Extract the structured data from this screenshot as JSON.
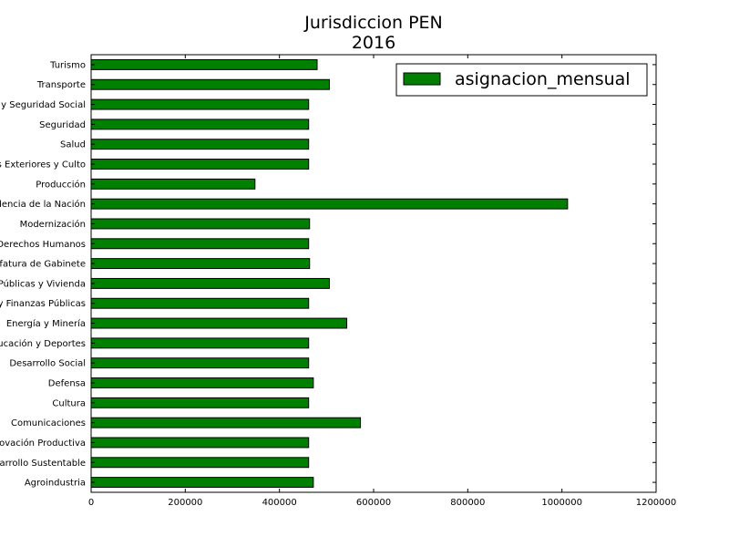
{
  "chart_data": {
    "type": "bar",
    "orientation": "horizontal",
    "title_lines": [
      "Jurisdiccion PEN",
      "2016"
    ],
    "xlabel": "",
    "ylabel": "",
    "xlim": [
      0,
      1200000
    ],
    "xticks": [
      0,
      200000,
      400000,
      600000,
      800000,
      1000000,
      1200000
    ],
    "xtick_labels": [
      "0",
      "200000",
      "400000",
      "600000",
      "800000",
      "1000000",
      "1200000"
    ],
    "grid": false,
    "legend_position": "top-right",
    "bar_color": "#008000",
    "categories": [
      "Agroindustria",
      "Ambiente y Desarrollo Sustentable",
      "Ciencia, Tecnología e Innovación Productiva",
      "Comunicaciones",
      "Cultura",
      "Defensa",
      "Desarrollo Social",
      "Educación y Deportes",
      "Energía y Minería",
      "Hacienda y Finanzas Públicas",
      "Interior, Obras Públicas y Vivienda",
      "Jefatura de Gabinete",
      "Justicia y Derechos Humanos",
      "Modernización",
      "Presidencia de la Nación",
      "Producción",
      "Relaciones Exteriores y Culto",
      "Salud",
      "Seguridad",
      "Trabajo, Empleo y Seguridad Social",
      "Transporte",
      "Turismo"
    ],
    "series": [
      {
        "name": "asignacion_mensual",
        "values": [
          472000,
          462000,
          462000,
          572000,
          462000,
          472000,
          462000,
          462000,
          543000,
          462000,
          506000,
          464000,
          462000,
          464000,
          1012000,
          348000,
          462000,
          462000,
          462000,
          462000,
          506000,
          480000
        ]
      }
    ]
  }
}
